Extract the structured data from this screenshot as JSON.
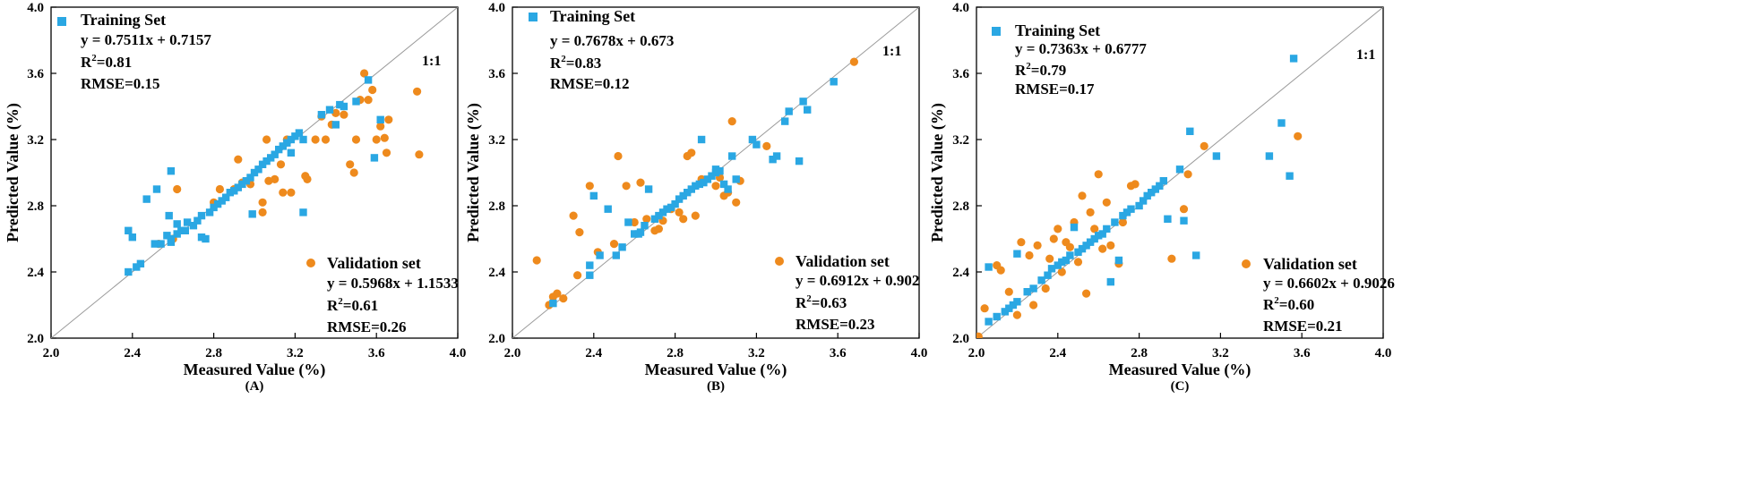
{
  "chart_data": [
    {
      "type": "scatter",
      "panel_label": "(A)",
      "xlabel": "Measured Value (%)",
      "ylabel": "Predicted Value (%)",
      "xlim": [
        2.0,
        4.0
      ],
      "ylim": [
        2.0,
        4.0
      ],
      "ticks": [
        "2.0",
        "2.4",
        "2.8",
        "3.2",
        "3.6",
        "4.0"
      ],
      "reference_line_label": "1:1",
      "training": {
        "name": "Training Set",
        "equation": "y = 0.7511x + 0.7157",
        "r2": "=0.81",
        "rmse": "RMSE=0.15",
        "color": "#2aa7e3",
        "points": [
          [
            2.38,
            2.4
          ],
          [
            2.42,
            2.43
          ],
          [
            2.44,
            2.45
          ],
          [
            2.38,
            2.65
          ],
          [
            2.4,
            2.61
          ],
          [
            2.47,
            2.84
          ],
          [
            2.51,
            2.57
          ],
          [
            2.52,
            2.9
          ],
          [
            2.54,
            2.57
          ],
          [
            2.57,
            2.62
          ],
          [
            2.58,
            2.74
          ],
          [
            2.59,
            2.6
          ],
          [
            2.59,
            2.58
          ],
          [
            2.59,
            3.01
          ],
          [
            2.62,
            2.63
          ],
          [
            2.62,
            2.69
          ],
          [
            2.64,
            2.65
          ],
          [
            2.66,
            2.65
          ],
          [
            2.67,
            2.7
          ],
          [
            2.7,
            2.68
          ],
          [
            2.72,
            2.71
          ],
          [
            2.74,
            2.74
          ],
          [
            2.74,
            2.61
          ],
          [
            2.76,
            2.6
          ],
          [
            2.78,
            2.76
          ],
          [
            2.8,
            2.79
          ],
          [
            2.82,
            2.81
          ],
          [
            2.84,
            2.83
          ],
          [
            2.86,
            2.85
          ],
          [
            2.88,
            2.88
          ],
          [
            2.9,
            2.89
          ],
          [
            2.92,
            2.91
          ],
          [
            2.94,
            2.93
          ],
          [
            2.96,
            2.95
          ],
          [
            2.98,
            2.97
          ],
          [
            2.99,
            2.75
          ],
          [
            3.0,
            3.0
          ],
          [
            3.02,
            3.02
          ],
          [
            3.04,
            3.05
          ],
          [
            3.06,
            3.07
          ],
          [
            3.08,
            3.09
          ],
          [
            3.1,
            3.11
          ],
          [
            3.12,
            3.14
          ],
          [
            3.14,
            3.16
          ],
          [
            3.16,
            3.18
          ],
          [
            3.18,
            3.2
          ],
          [
            3.18,
            3.12
          ],
          [
            3.2,
            3.22
          ],
          [
            3.22,
            3.24
          ],
          [
            3.24,
            3.2
          ],
          [
            3.24,
            2.76
          ],
          [
            3.33,
            3.35
          ],
          [
            3.37,
            3.38
          ],
          [
            3.4,
            3.29
          ],
          [
            3.42,
            3.41
          ],
          [
            3.44,
            3.4
          ],
          [
            3.5,
            3.43
          ],
          [
            3.56,
            3.56
          ],
          [
            3.59,
            3.09
          ],
          [
            3.62,
            3.32
          ]
        ]
      },
      "validation": {
        "name": "Validation set",
        "equation": "y = 0.5968x + 1.1533",
        "r2": "=0.61",
        "rmse": "RMSE=0.26",
        "color": "#ee8a1d",
        "points": [
          [
            2.53,
            2.57
          ],
          [
            2.6,
            2.6
          ],
          [
            2.62,
            2.9
          ],
          [
            2.8,
            2.82
          ],
          [
            2.83,
            2.9
          ],
          [
            2.9,
            2.9
          ],
          [
            2.92,
            3.08
          ],
          [
            2.94,
            2.94
          ],
          [
            2.98,
            2.93
          ],
          [
            3.04,
            2.82
          ],
          [
            3.04,
            2.76
          ],
          [
            3.06,
            3.2
          ],
          [
            3.07,
            2.95
          ],
          [
            3.1,
            2.96
          ],
          [
            3.13,
            3.05
          ],
          [
            3.14,
            2.88
          ],
          [
            3.16,
            3.2
          ],
          [
            3.18,
            2.88
          ],
          [
            3.25,
            2.98
          ],
          [
            3.26,
            2.96
          ],
          [
            3.3,
            3.2
          ],
          [
            3.33,
            3.34
          ],
          [
            3.35,
            3.2
          ],
          [
            3.38,
            3.29
          ],
          [
            3.4,
            3.36
          ],
          [
            3.44,
            3.35
          ],
          [
            3.47,
            3.05
          ],
          [
            3.49,
            3.0
          ],
          [
            3.5,
            3.2
          ],
          [
            3.52,
            3.44
          ],
          [
            3.54,
            3.6
          ],
          [
            3.56,
            3.44
          ],
          [
            3.58,
            3.5
          ],
          [
            3.6,
            3.2
          ],
          [
            3.62,
            3.28
          ],
          [
            3.64,
            3.21
          ],
          [
            3.65,
            3.12
          ],
          [
            3.66,
            3.32
          ],
          [
            3.8,
            3.49
          ],
          [
            3.81,
            3.11
          ]
        ]
      }
    },
    {
      "type": "scatter",
      "panel_label": "(B)",
      "xlabel": "Measured Value (%)",
      "ylabel": "Predicted Value (%)",
      "xlim": [
        2.0,
        4.0
      ],
      "ylim": [
        2.0,
        4.0
      ],
      "ticks": [
        "2.0",
        "2.4",
        "2.8",
        "3.2",
        "3.6",
        "4.0"
      ],
      "reference_line_label": "1:1",
      "training": {
        "name": "Training Set",
        "equation": "y = 0.7678x + 0.673",
        "r2": "=0.83",
        "rmse": "RMSE=0.12",
        "color": "#2aa7e3",
        "points": [
          [
            2.2,
            2.21
          ],
          [
            2.38,
            2.44
          ],
          [
            2.38,
            2.38
          ],
          [
            2.4,
            2.86
          ],
          [
            2.43,
            2.5
          ],
          [
            2.47,
            2.78
          ],
          [
            2.51,
            2.5
          ],
          [
            2.54,
            2.55
          ],
          [
            2.57,
            2.7
          ],
          [
            2.6,
            2.63
          ],
          [
            2.62,
            2.63
          ],
          [
            2.63,
            2.64
          ],
          [
            2.65,
            2.68
          ],
          [
            2.67,
            2.9
          ],
          [
            2.7,
            2.72
          ],
          [
            2.72,
            2.74
          ],
          [
            2.74,
            2.76
          ],
          [
            2.76,
            2.78
          ],
          [
            2.78,
            2.79
          ],
          [
            2.8,
            2.81
          ],
          [
            2.82,
            2.84
          ],
          [
            2.84,
            2.86
          ],
          [
            2.86,
            2.88
          ],
          [
            2.88,
            2.9
          ],
          [
            2.9,
            2.92
          ],
          [
            2.92,
            2.93
          ],
          [
            2.93,
            3.2
          ],
          [
            2.94,
            2.94
          ],
          [
            2.96,
            2.96
          ],
          [
            2.98,
            2.98
          ],
          [
            3.0,
            3.0
          ],
          [
            3.0,
            3.02
          ],
          [
            3.02,
            3.01
          ],
          [
            3.04,
            2.93
          ],
          [
            3.06,
            2.9
          ],
          [
            3.08,
            3.1
          ],
          [
            3.1,
            2.96
          ],
          [
            3.18,
            3.2
          ],
          [
            3.2,
            3.17
          ],
          [
            3.28,
            3.08
          ],
          [
            3.3,
            3.1
          ],
          [
            3.34,
            3.31
          ],
          [
            3.36,
            3.37
          ],
          [
            3.41,
            3.07
          ],
          [
            3.43,
            3.43
          ],
          [
            3.45,
            3.38
          ],
          [
            3.58,
            3.55
          ]
        ]
      },
      "validation": {
        "name": "Validation set",
        "equation": "y = 0.6912x + 0.902",
        "r2": "=0.63",
        "rmse": "RMSE=0.23",
        "color": "#ee8a1d",
        "points": [
          [
            2.12,
            2.47
          ],
          [
            2.18,
            2.2
          ],
          [
            2.2,
            2.25
          ],
          [
            2.22,
            2.27
          ],
          [
            2.25,
            2.24
          ],
          [
            2.3,
            2.74
          ],
          [
            2.32,
            2.38
          ],
          [
            2.33,
            2.64
          ],
          [
            2.38,
            2.92
          ],
          [
            2.42,
            2.52
          ],
          [
            2.5,
            2.57
          ],
          [
            2.52,
            3.1
          ],
          [
            2.56,
            2.92
          ],
          [
            2.6,
            2.7
          ],
          [
            2.63,
            2.94
          ],
          [
            2.66,
            2.72
          ],
          [
            2.7,
            2.65
          ],
          [
            2.72,
            2.66
          ],
          [
            2.74,
            2.71
          ],
          [
            2.78,
            2.78
          ],
          [
            2.82,
            2.76
          ],
          [
            2.84,
            2.72
          ],
          [
            2.86,
            3.1
          ],
          [
            2.88,
            3.12
          ],
          [
            2.9,
            2.74
          ],
          [
            2.93,
            2.96
          ],
          [
            3.0,
            2.92
          ],
          [
            3.02,
            2.97
          ],
          [
            3.04,
            2.86
          ],
          [
            3.06,
            2.88
          ],
          [
            3.08,
            3.31
          ],
          [
            3.1,
            2.82
          ],
          [
            3.12,
            2.95
          ],
          [
            3.25,
            3.16
          ],
          [
            3.68,
            3.67
          ]
        ]
      }
    },
    {
      "type": "scatter",
      "panel_label": "(C)",
      "xlabel": "Measured Value (%)",
      "ylabel": "Predicted Value (%)",
      "xlim": [
        2.0,
        4.0
      ],
      "ylim": [
        2.0,
        4.0
      ],
      "ticks": [
        "2.0",
        "2.4",
        "2.8",
        "3.2",
        "3.6",
        "4.0"
      ],
      "reference_line_label": "1:1",
      "training": {
        "name": "Training Set",
        "equation": "y = 0.7363x + 0.6777",
        "r2": "=0.79",
        "rmse": "RMSE=0.17",
        "color": "#2aa7e3",
        "points": [
          [
            2.06,
            2.43
          ],
          [
            2.06,
            2.1
          ],
          [
            2.1,
            2.13
          ],
          [
            2.14,
            2.16
          ],
          [
            2.16,
            2.18
          ],
          [
            2.18,
            2.2
          ],
          [
            2.2,
            2.22
          ],
          [
            2.2,
            2.51
          ],
          [
            2.25,
            2.28
          ],
          [
            2.28,
            2.3
          ],
          [
            2.32,
            2.35
          ],
          [
            2.35,
            2.38
          ],
          [
            2.37,
            2.42
          ],
          [
            2.4,
            2.44
          ],
          [
            2.42,
            2.46
          ],
          [
            2.44,
            2.47
          ],
          [
            2.46,
            2.5
          ],
          [
            2.48,
            2.67
          ],
          [
            2.5,
            2.52
          ],
          [
            2.52,
            2.54
          ],
          [
            2.54,
            2.56
          ],
          [
            2.56,
            2.58
          ],
          [
            2.58,
            2.6
          ],
          [
            2.6,
            2.62
          ],
          [
            2.62,
            2.63
          ],
          [
            2.64,
            2.66
          ],
          [
            2.66,
            2.34
          ],
          [
            2.68,
            2.7
          ],
          [
            2.7,
            2.47
          ],
          [
            2.72,
            2.74
          ],
          [
            2.74,
            2.76
          ],
          [
            2.76,
            2.78
          ],
          [
            2.8,
            2.8
          ],
          [
            2.82,
            2.83
          ],
          [
            2.84,
            2.86
          ],
          [
            2.86,
            2.88
          ],
          [
            2.88,
            2.9
          ],
          [
            2.9,
            2.92
          ],
          [
            2.92,
            2.95
          ],
          [
            2.94,
            2.72
          ],
          [
            3.0,
            3.02
          ],
          [
            3.02,
            2.71
          ],
          [
            3.05,
            3.25
          ],
          [
            3.08,
            2.5
          ],
          [
            3.18,
            3.1
          ],
          [
            3.44,
            3.1
          ],
          [
            3.5,
            3.3
          ],
          [
            3.54,
            2.98
          ],
          [
            3.56,
            3.69
          ]
        ]
      },
      "validation": {
        "name": "Validation set",
        "equation": "y = 0.6602x + 0.9026",
        "r2": "=0.60",
        "rmse": "RMSE=0.21",
        "color": "#ee8a1d",
        "points": [
          [
            2.01,
            2.01
          ],
          [
            2.04,
            2.18
          ],
          [
            2.1,
            2.44
          ],
          [
            2.12,
            2.41
          ],
          [
            2.16,
            2.28
          ],
          [
            2.2,
            2.14
          ],
          [
            2.22,
            2.58
          ],
          [
            2.26,
            2.5
          ],
          [
            2.28,
            2.2
          ],
          [
            2.3,
            2.56
          ],
          [
            2.34,
            2.3
          ],
          [
            2.36,
            2.48
          ],
          [
            2.38,
            2.6
          ],
          [
            2.4,
            2.66
          ],
          [
            2.42,
            2.4
          ],
          [
            2.44,
            2.58
          ],
          [
            2.46,
            2.55
          ],
          [
            2.48,
            2.7
          ],
          [
            2.5,
            2.46
          ],
          [
            2.52,
            2.86
          ],
          [
            2.54,
            2.27
          ],
          [
            2.56,
            2.76
          ],
          [
            2.58,
            2.66
          ],
          [
            2.6,
            2.99
          ],
          [
            2.62,
            2.54
          ],
          [
            2.64,
            2.82
          ],
          [
            2.66,
            2.56
          ],
          [
            2.7,
            2.45
          ],
          [
            2.72,
            2.7
          ],
          [
            2.76,
            2.92
          ],
          [
            2.78,
            2.93
          ],
          [
            2.96,
            2.48
          ],
          [
            3.02,
            2.78
          ],
          [
            3.04,
            2.99
          ],
          [
            3.12,
            3.16
          ],
          [
            3.58,
            3.22
          ]
        ]
      }
    }
  ]
}
